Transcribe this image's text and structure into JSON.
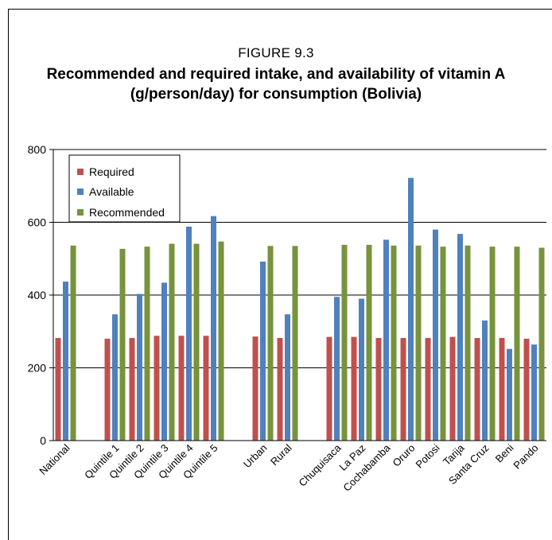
{
  "figure_label": "FIGURE 9.3",
  "title_line1": "Recommended and required intake, and availability of vitamin A",
  "title_line2": "(g/person/day) for consumption (Bolivia)",
  "colors": {
    "required": "#c0504d",
    "available": "#4f81bd",
    "recommended": "#77933c"
  },
  "chart_data": {
    "type": "bar",
    "title": "Recommended and required intake, and availability of vitamin A (g/person/day) for consumption (Bolivia)",
    "xlabel": "",
    "ylabel": "",
    "ylim": [
      0,
      800
    ],
    "yticks": [
      0,
      200,
      400,
      600,
      800
    ],
    "grid": true,
    "legend_position": "top-left",
    "categories": [
      "National",
      "",
      "Quintile 1",
      "Quintile 2",
      "Quintile 3",
      "Quintile 4",
      "Quintile 5",
      "",
      "Urban",
      "Rural",
      "",
      "Chuquisaca",
      "La Paz",
      "Cochabamba",
      "Oruro",
      "Potosi",
      "Tarija",
      "Santa Cruz",
      "Beni",
      "Pando"
    ],
    "series": [
      {
        "name": "Required",
        "values": [
          282,
          null,
          280,
          282,
          288,
          288,
          288,
          null,
          286,
          282,
          null,
          285,
          285,
          282,
          282,
          282,
          285,
          282,
          282,
          280
        ]
      },
      {
        "name": "Available",
        "values": [
          437,
          null,
          347,
          403,
          434,
          588,
          617,
          null,
          492,
          347,
          null,
          395,
          390,
          552,
          722,
          580,
          568,
          330,
          252,
          264
        ]
      },
      {
        "name": "Recommended",
        "values": [
          536,
          null,
          527,
          533,
          541,
          541,
          547,
          null,
          535,
          535,
          null,
          538,
          538,
          536,
          536,
          533,
          536,
          533,
          533,
          530
        ]
      }
    ]
  }
}
